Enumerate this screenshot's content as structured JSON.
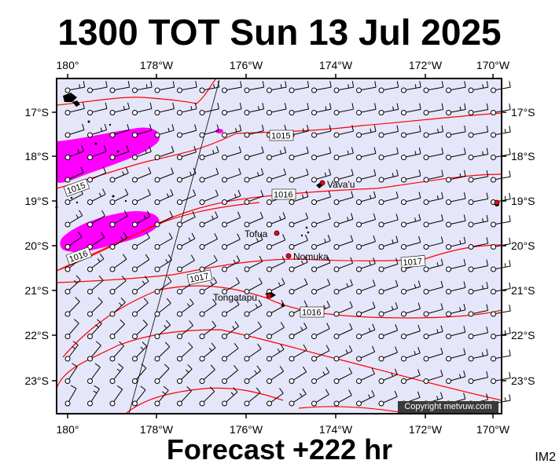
{
  "header": {
    "title": "1300 TOT Sun 13 Jul 2025"
  },
  "footer": {
    "forecast": "Forecast +222 hr",
    "code": "IM2"
  },
  "map": {
    "copyright": "Copyright metvuw.com",
    "lon_labels": [
      "180°",
      "178°W",
      "176°W",
      "174°W",
      "172°W",
      "170°W"
    ],
    "lat_labels": [
      "17°S",
      "18°S",
      "19°S",
      "20°S",
      "21°S",
      "22°S",
      "23°S"
    ],
    "places": [
      {
        "name": "Vava'u"
      },
      {
        "name": "Tofua"
      },
      {
        "name": "Nomuka"
      },
      {
        "name": "Tongatapu"
      }
    ],
    "isobar_labels": [
      "1015",
      "1015",
      "1016",
      "1016",
      "1017",
      "1017",
      "1016"
    ],
    "colors": {
      "land": "#000000",
      "ocean": "#e6e6fa",
      "isobar": "#ff0000",
      "rain": "#ff00ff"
    }
  }
}
